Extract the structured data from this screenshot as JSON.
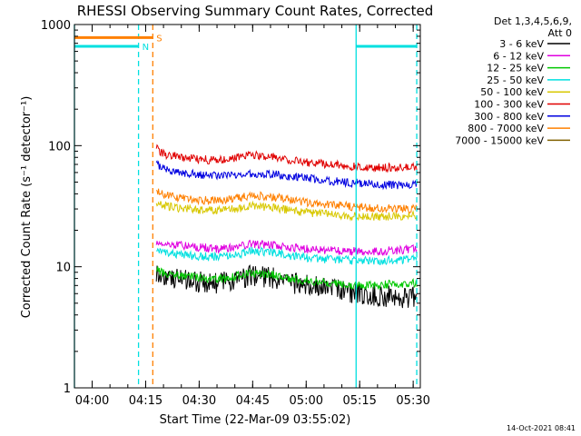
{
  "chart_data": {
    "type": "line",
    "title": "RHESSI Observing Summary Count Rates, Corrected",
    "xlabel": "Start Time (22-Mar-09 03:55:02)",
    "ylabel": "Corrected Count Rate (s⁻¹ detector⁻¹)",
    "x_scale": "time",
    "y_scale": "log",
    "xlim": [
      "03:55:02",
      "05:32:00"
    ],
    "ylim": [
      1,
      1000
    ],
    "x_ticks": [
      "04:00",
      "04:15",
      "04:30",
      "04:45",
      "05:00",
      "05:15",
      "05:30"
    ],
    "y_ticks": [
      "1",
      "10",
      "100",
      "1000"
    ],
    "legend": {
      "header": [
        "Det 1,3,4,5,6,9,",
        "Att 0"
      ],
      "placement": "right"
    },
    "series": [
      {
        "name": "3 - 6 keV",
        "color": "#000000",
        "x": [
          "04:18",
          "04:20",
          "04:25",
          "04:30",
          "04:35",
          "04:40",
          "04:45",
          "04:50",
          "04:55",
          "05:00",
          "05:05",
          "05:10",
          "05:15",
          "05:20",
          "05:25",
          "05:31"
        ],
        "values": [
          9,
          8.2,
          7.8,
          7.5,
          7.3,
          7.8,
          8.5,
          8.2,
          7.4,
          7.0,
          6.8,
          6.4,
          6.0,
          5.8,
          5.6,
          5.5
        ]
      },
      {
        "name": "6 - 12 keV",
        "color": "#e000e0",
        "x": [
          "04:18",
          "04:20",
          "04:25",
          "04:30",
          "04:35",
          "04:40",
          "04:45",
          "04:50",
          "04:55",
          "05:00",
          "05:05",
          "05:10",
          "05:15",
          "05:20",
          "05:25",
          "05:31"
        ],
        "values": [
          16,
          15.5,
          15,
          14.5,
          14,
          14.5,
          15.5,
          15.2,
          14.5,
          14,
          13.8,
          13.5,
          13.4,
          13.5,
          13.6,
          14
        ]
      },
      {
        "name": "12 - 25 keV",
        "color": "#00c800",
        "x": [
          "04:18",
          "04:20",
          "04:25",
          "04:30",
          "04:35",
          "04:40",
          "04:45",
          "04:50",
          "04:55",
          "05:00",
          "05:05",
          "05:10",
          "05:15",
          "05:20",
          "05:25",
          "05:31"
        ],
        "values": [
          9.5,
          8.8,
          8.4,
          8.1,
          7.9,
          8.3,
          8.9,
          8.7,
          8.1,
          7.6,
          7.4,
          7.2,
          7.1,
          7.1,
          7.2,
          7.3
        ]
      },
      {
        "name": "25 - 50 keV",
        "color": "#00e0e0",
        "x": [
          "04:18",
          "04:20",
          "04:25",
          "04:30",
          "04:35",
          "04:40",
          "04:45",
          "04:50",
          "04:55",
          "05:00",
          "05:05",
          "05:10",
          "05:15",
          "05:20",
          "05:25",
          "05:31"
        ],
        "values": [
          14,
          13.2,
          12.6,
          12.2,
          12,
          12.5,
          13.6,
          13.2,
          12.4,
          11.9,
          11.6,
          11.4,
          11.2,
          11.2,
          11.3,
          11.5
        ]
      },
      {
        "name": "50 - 100 keV",
        "color": "#d8c800",
        "x": [
          "04:18",
          "04:20",
          "04:25",
          "04:30",
          "04:35",
          "04:40",
          "04:45",
          "04:50",
          "04:55",
          "05:00",
          "05:05",
          "05:10",
          "05:15",
          "05:20",
          "05:25",
          "05:31"
        ],
        "values": [
          34,
          32,
          30.5,
          29.5,
          29,
          30,
          32,
          31,
          29.5,
          28,
          27.2,
          26.5,
          26,
          25.8,
          26,
          26.5
        ]
      },
      {
        "name": "100 - 300 keV",
        "color": "#e00000",
        "x": [
          "04:18",
          "04:20",
          "04:25",
          "04:30",
          "04:35",
          "04:40",
          "04:45",
          "04:50",
          "04:55",
          "05:00",
          "05:05",
          "05:10",
          "05:15",
          "05:20",
          "05:25",
          "05:31"
        ],
        "values": [
          95,
          85,
          80,
          77,
          76,
          79,
          84,
          82,
          77,
          73,
          71,
          69,
          67,
          66,
          66,
          66
        ]
      },
      {
        "name": "300 - 800 keV",
        "color": "#0000e0",
        "x": [
          "04:18",
          "04:20",
          "04:25",
          "04:30",
          "04:35",
          "04:40",
          "04:45",
          "04:50",
          "04:55",
          "05:00",
          "05:05",
          "05:10",
          "05:15",
          "05:20",
          "05:25",
          "05:31"
        ],
        "values": [
          72,
          64,
          60,
          58,
          57,
          58,
          59,
          58,
          56,
          54,
          52,
          50,
          49,
          48,
          47,
          47
        ]
      },
      {
        "name": "800 - 7000 keV",
        "color": "#ff8000",
        "x": [
          "04:18",
          "04:20",
          "04:25",
          "04:30",
          "04:35",
          "04:40",
          "04:45",
          "04:50",
          "04:55",
          "05:00",
          "05:05",
          "05:10",
          "05:15",
          "05:20",
          "05:25",
          "05:31"
        ],
        "values": [
          42,
          39,
          37,
          35.5,
          35,
          36.5,
          39,
          38,
          36,
          34,
          33,
          32,
          31,
          30.5,
          30,
          30
        ]
      },
      {
        "name": "7000 - 15000 keV",
        "color": "#806000",
        "x": [],
        "values": []
      }
    ],
    "flags": [
      {
        "label": "S",
        "color": "#ff8000",
        "x_start": "03:55:02",
        "x_end": "04:17",
        "y_level": 780
      },
      {
        "label": "N",
        "color": "#00e0e0",
        "x_start": "03:55:02",
        "x_end": "04:13",
        "y_level": 660
      },
      {
        "label": "",
        "color": "#00e0e0",
        "x_start": "05:14",
        "x_end": "05:31",
        "y_level": 660
      }
    ],
    "vertical_lines": [
      {
        "x": "03:55:02",
        "color": "#00e0e0",
        "style": "solid"
      },
      {
        "x": "04:13",
        "color": "#00e0e0",
        "style": "dashed"
      },
      {
        "x": "04:17",
        "color": "#ff8000",
        "style": "dashed"
      },
      {
        "x": "05:14",
        "color": "#00e0e0",
        "style": "solid"
      },
      {
        "x": "05:31",
        "color": "#00e0e0",
        "style": "dashed"
      }
    ]
  },
  "footer": {
    "timestamp": "14-Oct-2021 08:41"
  }
}
